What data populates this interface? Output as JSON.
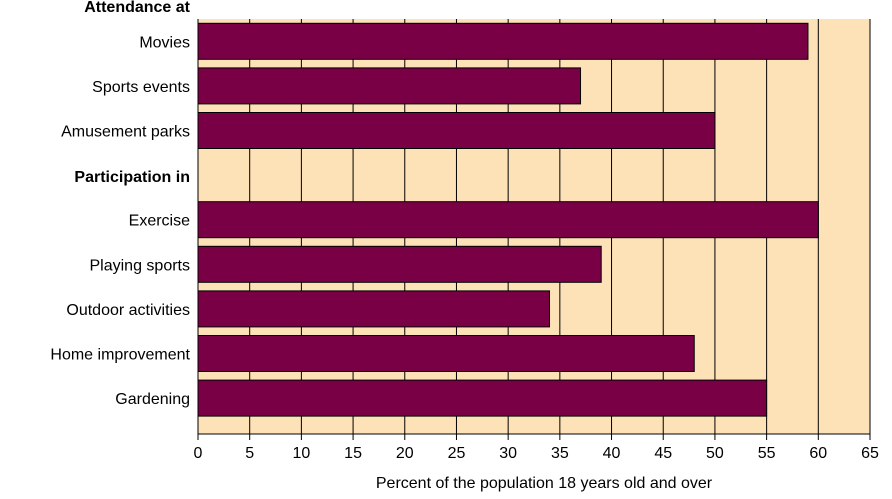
{
  "chart_data": {
    "type": "bar",
    "orientation": "horizontal",
    "title": "",
    "xlabel": "Percent of the population 18 years old and over",
    "ylabel": "",
    "xlim": [
      0,
      65
    ],
    "xticks": [
      "0",
      "5",
      "10",
      "15",
      "20",
      "25",
      "30",
      "35",
      "40",
      "45",
      "50",
      "55",
      "60",
      "65"
    ],
    "grid": "vertical",
    "colors": {
      "bar": "#7a0046",
      "plot_background": "#fde2b8",
      "grid": "#000000"
    },
    "groups": [
      {
        "label": "Attendance  at",
        "categories": [
          "Movies",
          "Sports events",
          "Amusement parks"
        ],
        "values": [
          59,
          37,
          50
        ]
      },
      {
        "label": "Participation in",
        "categories": [
          "Exercise",
          "Playing sports",
          "Outdoor activities",
          "Home improvement",
          "Gardening"
        ],
        "values": [
          60,
          39,
          34,
          48,
          55
        ]
      }
    ]
  }
}
